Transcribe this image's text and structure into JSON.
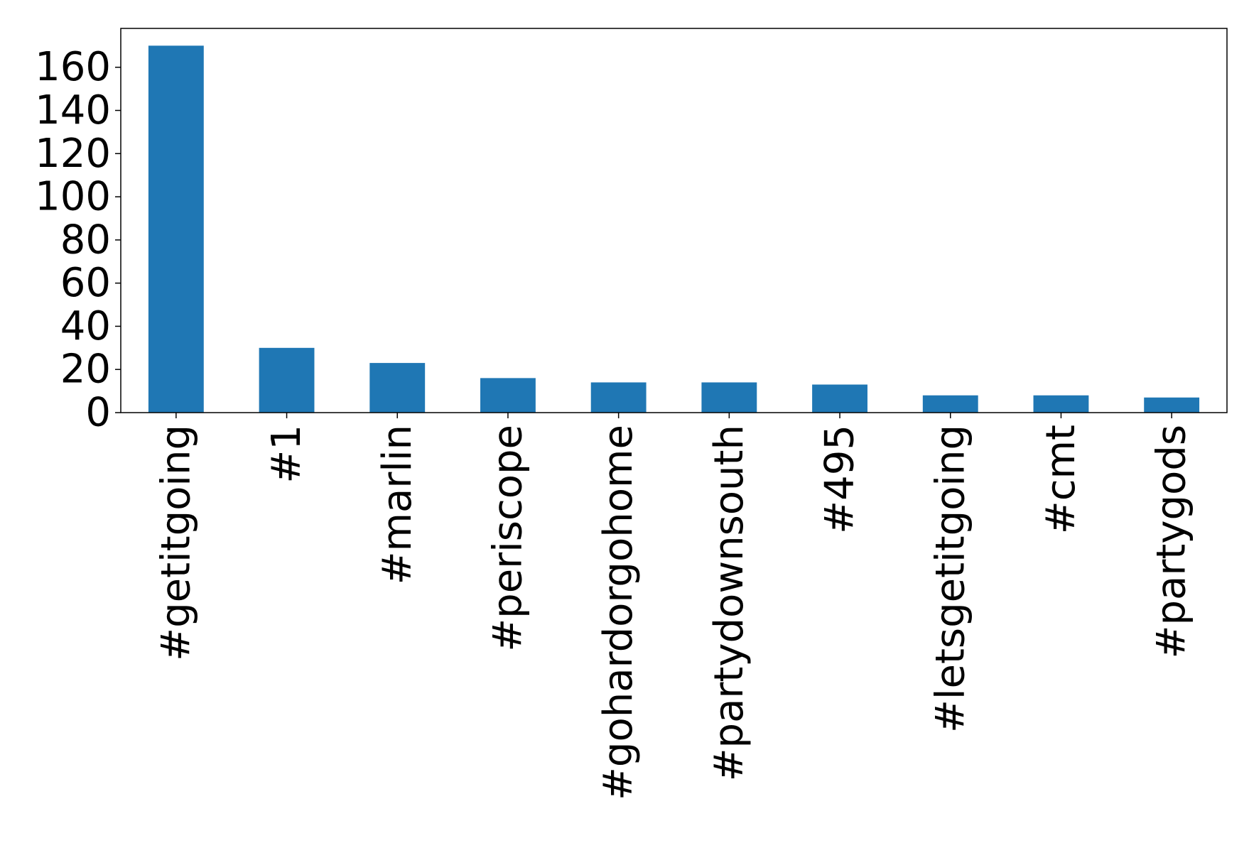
{
  "chart_data": {
    "type": "bar",
    "title": "",
    "xlabel": "",
    "ylabel": "",
    "categories": [
      "#getitgoing",
      "#1",
      "#marlin",
      "#periscope",
      "#gohardorgohome",
      "#partydownsouth",
      "#495",
      "#letsgetitgoing",
      "#cmt",
      "#partygods"
    ],
    "values": [
      170,
      30,
      23,
      16,
      14,
      14,
      13,
      8,
      8,
      7
    ],
    "ylim": [
      0,
      178
    ],
    "yticks": [
      0,
      20,
      40,
      60,
      80,
      100,
      120,
      140,
      160
    ],
    "grid": false,
    "legend": "none",
    "bar_color": "#1f77b4",
    "axis_color": "#000000"
  }
}
